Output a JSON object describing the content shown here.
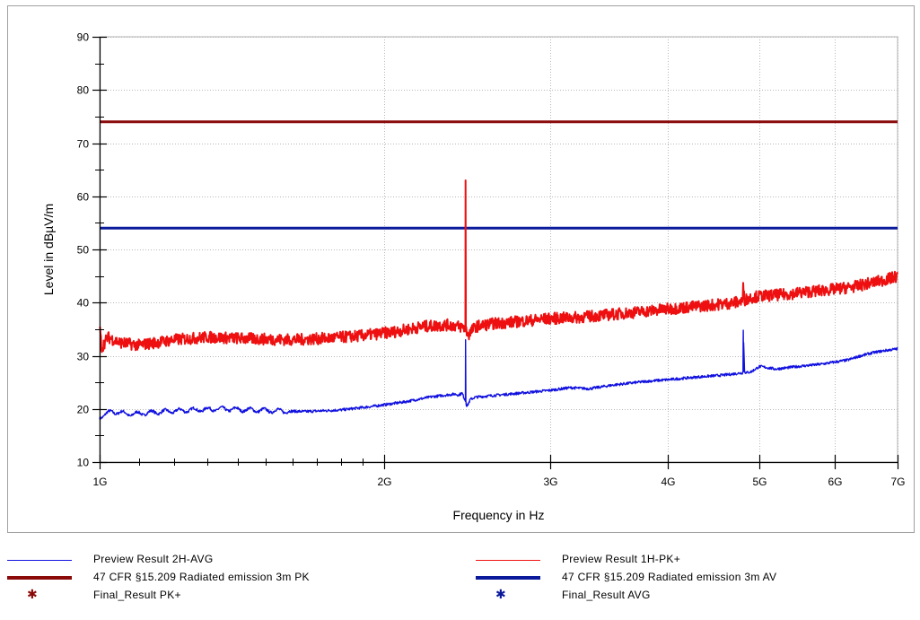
{
  "chart_data": {
    "type": "line",
    "title": "",
    "xlabel": "Frequency in Hz",
    "ylabel": "Level in dBµV/m",
    "x_scale": "log",
    "xlim": [
      1000000000,
      7000000000
    ],
    "ylim": [
      10,
      90
    ],
    "x_ticks": [
      {
        "value": 1000000000,
        "label": "1G"
      },
      {
        "value": 2000000000,
        "label": "2G"
      },
      {
        "value": 3000000000,
        "label": "3G"
      },
      {
        "value": 4000000000,
        "label": "4G"
      },
      {
        "value": 5000000000,
        "label": "5G"
      },
      {
        "value": 6000000000,
        "label": "6G"
      },
      {
        "value": 7000000000,
        "label": "7G"
      }
    ],
    "y_ticks": [
      10,
      20,
      30,
      40,
      50,
      60,
      70,
      80,
      90
    ],
    "grid": true,
    "legend_position": "bottom",
    "series": [
      {
        "name": "Preview Result 2H-AVG",
        "color": "#1010e0",
        "style": "thin-line",
        "x": [
          1000000000,
          1030000000,
          1080000000,
          1150000000,
          1250000000,
          1350000000,
          1500000000,
          1650000000,
          1800000000,
          1950000000,
          2100000000,
          2250000000,
          2380000000,
          2400000000,
          2420000000,
          2440000000,
          2441000000,
          2443000000,
          2450000000,
          2470000000,
          2500000000,
          2600000000,
          2800000000,
          3000000000,
          3150000000,
          3300000000,
          3500000000,
          3800000000,
          4000000000,
          4300000000,
          4600000000,
          4800000000,
          4805000000,
          4820000000,
          4840000000,
          4900000000,
          5000000000,
          5200000000,
          5500000000,
          5800000000,
          6000000000,
          6200000000,
          6400000000,
          6600000000,
          6800000000,
          7000000000
        ],
        "y": [
          18.5,
          19.5,
          19.0,
          19.4,
          19.8,
          20.0,
          19.7,
          19.5,
          19.8,
          20.5,
          21.3,
          22.3,
          22.8,
          22.6,
          23.0,
          21.5,
          33.0,
          21.0,
          20.5,
          21.8,
          22.2,
          22.5,
          23.0,
          23.5,
          24.0,
          23.8,
          24.5,
          25.2,
          25.5,
          26.0,
          26.4,
          26.8,
          34.8,
          27.0,
          26.8,
          27.0,
          28.0,
          27.5,
          28.0,
          28.4,
          28.8,
          29.2,
          30.0,
          30.6,
          31.0,
          31.3
        ]
      },
      {
        "name": "Preview Result 1H-PK+",
        "color": "#ee1010",
        "style": "thick-noisy-line",
        "x": [
          1000000000,
          1005000000,
          1020000000,
          1050000000,
          1100000000,
          1200000000,
          1300000000,
          1450000000,
          1600000000,
          1750000000,
          1900000000,
          2050000000,
          2200000000,
          2350000000,
          2420000000,
          2440000000,
          2441000000,
          2443000000,
          2460000000,
          2500000000,
          2600000000,
          2800000000,
          3000000000,
          3200000000,
          3400000000,
          3700000000,
          4000000000,
          4300000000,
          4600000000,
          4800000000,
          4805000000,
          4820000000,
          4900000000,
          5000000000,
          5300000000,
          5600000000,
          6000000000,
          6300000000,
          6600000000,
          6800000000,
          7000000000
        ],
        "y": [
          35.5,
          31.5,
          33.5,
          32.5,
          32.0,
          33.0,
          33.5,
          33.2,
          33.0,
          33.3,
          33.8,
          34.5,
          35.5,
          35.8,
          35.4,
          35.2,
          63.0,
          34.8,
          34.0,
          35.5,
          36.0,
          36.5,
          37.0,
          37.2,
          37.6,
          38.2,
          38.8,
          39.3,
          39.8,
          40.2,
          43.5,
          40.5,
          41.0,
          41.2,
          41.5,
          42.0,
          42.5,
          43.0,
          43.8,
          44.3,
          45.0
        ]
      },
      {
        "name": "47 CFR §15.209 Radiated emission 3m PK",
        "color": "#8b0a0a",
        "style": "limit-line",
        "x": [
          1000000000,
          7000000000
        ],
        "y": [
          74,
          74
        ]
      },
      {
        "name": "47 CFR §15.209 Radiated emission 3m AV",
        "color": "#0a1a9a",
        "style": "limit-line",
        "x": [
          1000000000,
          7000000000
        ],
        "y": [
          54,
          54
        ]
      },
      {
        "name": "Final_Result PK+",
        "color": "#8b0a0a",
        "style": "marker",
        "marker": "*",
        "x": [],
        "y": []
      },
      {
        "name": "Final_Result AVG",
        "color": "#0a1a9a",
        "style": "marker",
        "marker": "*",
        "x": [],
        "y": []
      }
    ]
  }
}
